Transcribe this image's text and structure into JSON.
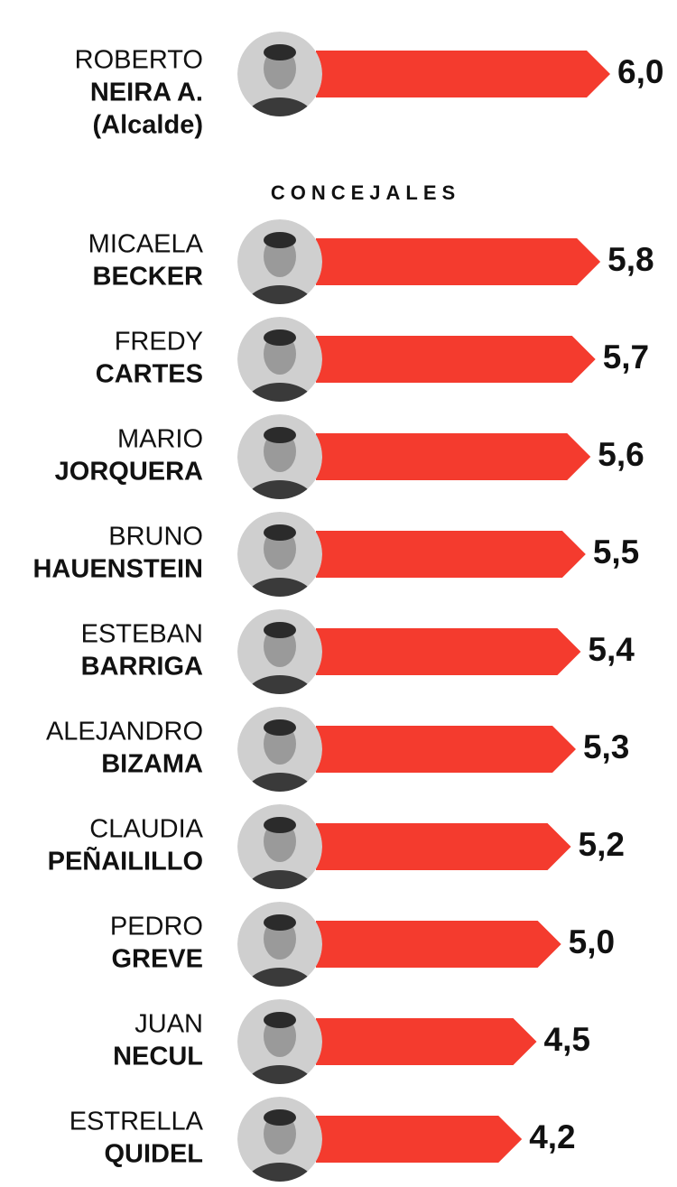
{
  "chart_data": {
    "type": "bar",
    "section_label": "CONCEJALES",
    "categories": [
      [
        "ROBERTO",
        "NEIRA A.",
        "(Alcalde)"
      ],
      [
        "MICAELA",
        "BECKER"
      ],
      [
        "FREDY",
        "CARTES"
      ],
      [
        "MARIO",
        "JORQUERA"
      ],
      [
        "BRUNO",
        "HAUENSTEIN"
      ],
      [
        "ESTEBAN",
        "BARRIGA"
      ],
      [
        "ALEJANDRO",
        "BIZAMA"
      ],
      [
        "CLAUDIA",
        "PEÑAILILLO"
      ],
      [
        "PEDRO",
        "GREVE"
      ],
      [
        "JUAN",
        "NECUL"
      ],
      [
        "ESTRELLA",
        "QUIDEL"
      ]
    ],
    "values": [
      6.0,
      5.8,
      5.7,
      5.6,
      5.5,
      5.4,
      5.3,
      5.2,
      5.0,
      4.5,
      4.2
    ],
    "value_labels": [
      "6,0",
      "5,8",
      "5,7",
      "5,6",
      "5,5",
      "5,4",
      "5,3",
      "5,2",
      "5,0",
      "4,5",
      "4,2"
    ],
    "color": "#f43b2e"
  }
}
